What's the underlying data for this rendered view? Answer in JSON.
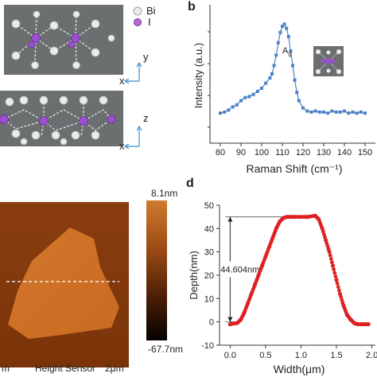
{
  "panel_a": {
    "letter": "",
    "legend": [
      {
        "symbol": "Bi",
        "color": "#e8ecec"
      },
      {
        "symbol": "I",
        "color": "#b46ad6"
      }
    ],
    "top_view_axes": {
      "vertical": "y",
      "horizontal": "x"
    },
    "side_view_axes": {
      "vertical": "z",
      "horizontal": "x"
    }
  },
  "panel_b": {
    "letter": "b",
    "chart_data": {
      "type": "line",
      "title": "",
      "xlabel": "Raman Shift (cm⁻¹)",
      "ylabel": "Intensity (a.u.)",
      "xlim": [
        75,
        155
      ],
      "x_ticks": [
        80,
        90,
        100,
        110,
        120,
        130,
        140,
        150
      ],
      "annotation": {
        "text": "A",
        "subscript": "g"
      },
      "markers": "square",
      "color": "#4b82c6",
      "y_units": "a.u.",
      "ylim": [
        0,
        100
      ],
      "x": [
        80,
        82,
        84,
        86,
        88,
        90,
        92,
        94,
        96,
        98,
        100,
        102,
        104,
        105,
        106,
        107,
        108,
        109,
        110,
        111,
        112,
        113,
        114,
        115,
        116,
        117,
        118,
        120,
        122,
        124,
        126,
        128,
        130,
        132,
        134,
        136,
        138,
        140,
        142,
        144,
        146,
        148,
        150
      ],
      "y": [
        6,
        7,
        9,
        12,
        14,
        18,
        21,
        22,
        24,
        27,
        30,
        35,
        40,
        44,
        52,
        62,
        74,
        84,
        90,
        92,
        88,
        80,
        66,
        52,
        38,
        26,
        18,
        11,
        8,
        7,
        8,
        7,
        7,
        6,
        8,
        7,
        7,
        8,
        6,
        7,
        6,
        7,
        6
      ]
    }
  },
  "panel_c": {
    "letter": "",
    "colorbar_max": "8.1nm",
    "colorbar_min": "-67.7nm",
    "scale_left": "m",
    "scale_right": "2μm",
    "caption": "Height Sensor"
  },
  "panel_d": {
    "letter": "d",
    "chart_data": {
      "type": "scatter",
      "title": "",
      "xlabel": "Width(μm)",
      "ylabel": "Depth(nm)",
      "xlim": [
        -0.15,
        2.05
      ],
      "ylim": [
        -10,
        50
      ],
      "x_ticks": [
        "0.0",
        "0.5",
        "1.0",
        "1.5",
        "2.0"
      ],
      "y_ticks": [
        -10,
        0,
        10,
        20,
        30,
        40,
        50
      ],
      "annotation": "44.604nm",
      "color": "#e02020",
      "x": [
        0.0,
        0.1,
        0.15,
        0.2,
        0.25,
        0.3,
        0.35,
        0.4,
        0.45,
        0.5,
        0.55,
        0.6,
        0.65,
        0.7,
        0.75,
        0.8,
        0.85,
        0.9,
        1.0,
        1.1,
        1.2,
        1.25,
        1.3,
        1.35,
        1.4,
        1.45,
        1.5,
        1.55,
        1.6,
        1.65,
        1.7,
        1.75,
        1.8,
        1.85,
        1.9,
        1.95
      ],
      "y": [
        -1,
        -0.5,
        1,
        4,
        8,
        12,
        16,
        20,
        24,
        28,
        32,
        36,
        40,
        43,
        44.5,
        45,
        45,
        45,
        45,
        45,
        45.5,
        44,
        40,
        35,
        30,
        24,
        18,
        12,
        7,
        3,
        1,
        -0.5,
        -1,
        -1,
        -1,
        -1
      ]
    }
  }
}
